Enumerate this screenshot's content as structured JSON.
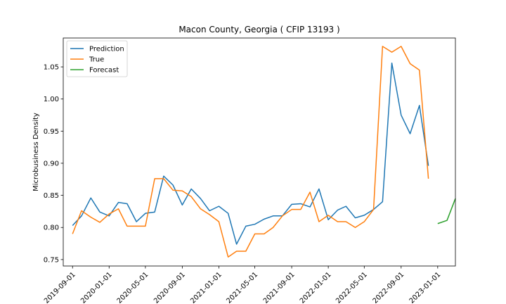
{
  "chart_data": {
    "type": "line",
    "title": "Macon County, Georgia ( CFIP 13193 )",
    "xlabel": "",
    "ylabel": "Microbusiness Density",
    "xlim": [
      "2019-08-01",
      "2023-03-01"
    ],
    "ylim": [
      0.74,
      1.095
    ],
    "x_ticks": [
      "2019-09-01",
      "2020-01-01",
      "2020-05-01",
      "2020-09-01",
      "2021-01-01",
      "2021-05-01",
      "2021-09-01",
      "2022-01-01",
      "2022-05-01",
      "2022-09-01",
      "2023-01-01"
    ],
    "y_ticks": [
      0.75,
      0.8,
      0.85,
      0.9,
      0.95,
      1.0,
      1.05
    ],
    "y_tick_labels": [
      "0.75",
      "0.80",
      "0.85",
      "0.90",
      "0.95",
      "1.00",
      "1.05"
    ],
    "grid": false,
    "legend_position": "top-left",
    "series": [
      {
        "name": "Prediction",
        "color": "#1f77b4",
        "x": [
          "2019-09-01",
          "2019-10-01",
          "2019-11-01",
          "2019-12-01",
          "2020-01-01",
          "2020-02-01",
          "2020-03-01",
          "2020-04-01",
          "2020-05-01",
          "2020-06-01",
          "2020-07-01",
          "2020-08-01",
          "2020-09-01",
          "2020-10-01",
          "2020-11-01",
          "2020-12-01",
          "2021-01-01",
          "2021-02-01",
          "2021-03-01",
          "2021-04-01",
          "2021-05-01",
          "2021-06-01",
          "2021-07-01",
          "2021-08-01",
          "2021-09-01",
          "2021-10-01",
          "2021-11-01",
          "2021-12-01",
          "2022-01-01",
          "2022-02-01",
          "2022-03-01",
          "2022-04-01",
          "2022-05-01",
          "2022-06-01",
          "2022-07-01",
          "2022-08-01",
          "2022-09-01",
          "2022-10-01",
          "2022-11-01",
          "2022-12-01"
        ],
        "values": [
          0.803,
          0.818,
          0.846,
          0.824,
          0.818,
          0.839,
          0.837,
          0.809,
          0.822,
          0.824,
          0.88,
          0.866,
          0.835,
          0.86,
          0.845,
          0.826,
          0.833,
          0.822,
          0.774,
          0.802,
          0.805,
          0.813,
          0.818,
          0.818,
          0.836,
          0.837,
          0.832,
          0.86,
          0.812,
          0.827,
          0.833,
          0.815,
          0.819,
          0.828,
          0.84,
          1.056,
          0.975,
          0.946,
          0.99,
          0.896
        ]
      },
      {
        "name": "True",
        "color": "#ff7f0e",
        "x": [
          "2019-09-01",
          "2019-10-01",
          "2019-11-01",
          "2019-12-01",
          "2020-01-01",
          "2020-02-01",
          "2020-03-01",
          "2020-04-01",
          "2020-05-01",
          "2020-06-01",
          "2020-07-01",
          "2020-08-01",
          "2020-09-01",
          "2020-10-01",
          "2020-11-01",
          "2020-12-01",
          "2021-01-01",
          "2021-02-01",
          "2021-03-01",
          "2021-04-01",
          "2021-05-01",
          "2021-06-01",
          "2021-07-01",
          "2021-08-01",
          "2021-09-01",
          "2021-10-01",
          "2021-11-01",
          "2021-12-01",
          "2022-01-01",
          "2022-02-01",
          "2022-03-01",
          "2022-04-01",
          "2022-05-01",
          "2022-06-01",
          "2022-07-01",
          "2022-08-01",
          "2022-09-01",
          "2022-10-01",
          "2022-11-01",
          "2022-12-01"
        ],
        "values": [
          0.79,
          0.826,
          0.816,
          0.808,
          0.821,
          0.829,
          0.802,
          0.802,
          0.802,
          0.876,
          0.876,
          0.858,
          0.857,
          0.848,
          0.829,
          0.82,
          0.809,
          0.754,
          0.763,
          0.763,
          0.79,
          0.79,
          0.8,
          0.818,
          0.828,
          0.828,
          0.855,
          0.809,
          0.819,
          0.809,
          0.809,
          0.8,
          0.809,
          0.828,
          1.082,
          1.073,
          1.082,
          1.055,
          1.045,
          0.876
        ]
      },
      {
        "name": "Forecast",
        "color": "#2ca02c",
        "x": [
          "2023-01-01",
          "2023-02-01",
          "2023-03-01"
        ],
        "values": [
          0.806,
          0.811,
          0.845
        ]
      }
    ]
  }
}
